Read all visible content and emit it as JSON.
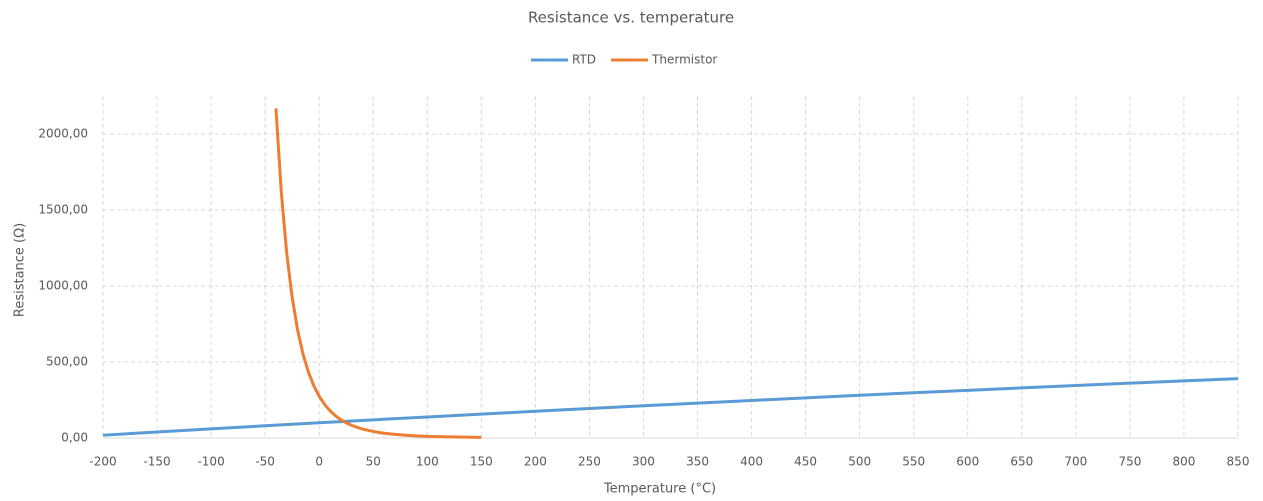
{
  "chart_data": {
    "type": "line",
    "title": "Resistance vs. temperature",
    "xlabel": "Temperature (°C)",
    "ylabel": "Resistance (Ω)",
    "xlim": [
      -200,
      850
    ],
    "xticks": [
      -200,
      -150,
      -100,
      -50,
      0,
      50,
      100,
      150,
      200,
      250,
      300,
      350,
      400,
      450,
      500,
      550,
      600,
      650,
      700,
      750,
      800,
      850
    ],
    "ylim": [
      0,
      2250
    ],
    "yticks": [
      {
        "value": 0,
        "label": "0,00"
      },
      {
        "value": 500,
        "label": "500,00"
      },
      {
        "value": 1000,
        "label": "1000,00"
      },
      {
        "value": 1500,
        "label": "1500,00"
      },
      {
        "value": 2000,
        "label": "2000,00"
      }
    ],
    "grid": true,
    "legend": "top",
    "series": [
      {
        "name": "RTD",
        "color": "#5b9bd5",
        "x": [
          -200,
          -150,
          -100,
          -50,
          0,
          50,
          100,
          150,
          200,
          250,
          300,
          350,
          400,
          450,
          500,
          550,
          600,
          650,
          700,
          750,
          800,
          850
        ],
        "values": [
          18.52,
          39.72,
          60.26,
          80.31,
          100,
          119.4,
          138.51,
          157.33,
          175.86,
          194.1,
          212.05,
          229.72,
          247.09,
          264.18,
          280.98,
          297.49,
          313.71,
          329.64,
          345.28,
          360.64,
          375.7,
          390.48
        ]
      },
      {
        "name": "Thermistor",
        "color": "#ed7d31",
        "x": [
          -40,
          -35,
          -30,
          -25,
          -20,
          -15,
          -10,
          -5,
          0,
          5,
          10,
          15,
          20,
          25,
          30,
          40,
          50,
          60,
          70,
          80,
          90,
          100,
          120,
          150
        ],
        "values": [
          2168,
          1612,
          1213,
          924,
          711,
          553,
          434,
          344,
          275,
          221,
          179,
          147,
          121,
          100,
          83,
          59,
          43,
          31,
          24,
          18,
          14,
          11,
          7,
          4
        ]
      }
    ]
  }
}
